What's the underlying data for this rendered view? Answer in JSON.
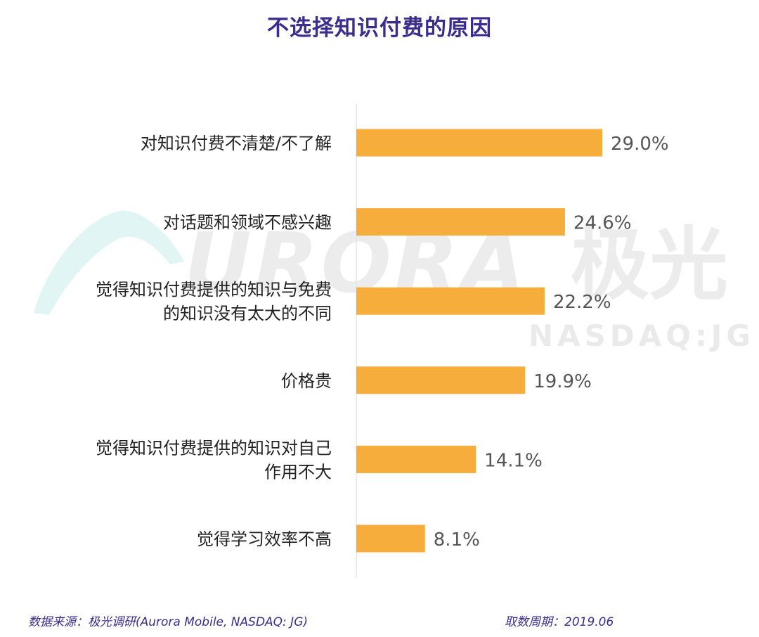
{
  "watermark": {
    "brand_text": "URORA",
    "brand_cn": "极光",
    "ticker": "NASDAQ:JG"
  },
  "chart_data": {
    "type": "bar",
    "orientation": "horizontal",
    "title": "不选择知识付费的原因",
    "categories": [
      [
        "对知识付费不清楚/不了解"
      ],
      [
        "对话题和领域不感兴趣"
      ],
      [
        "觉得知识付费提供的知识与免费",
        "的知识没有太大的不同"
      ],
      [
        "价格贵"
      ],
      [
        "觉得知识付费提供的知识对自己",
        "作用不大"
      ],
      [
        "觉得学习效率不高"
      ]
    ],
    "values": [
      29.0,
      24.6,
      22.2,
      19.9,
      14.1,
      8.1
    ],
    "value_labels": [
      "29.0%",
      "24.6%",
      "22.2%",
      "19.9%",
      "14.1%",
      "8.1%"
    ],
    "xlim": [
      0,
      40
    ],
    "bar_color": "#f6ad3c",
    "grid": false,
    "legend": "none"
  },
  "footer": {
    "source": "数据来源：极光调研(Aurora Mobile, NASDAQ: JG)",
    "period": "取数周期：2019.06"
  }
}
